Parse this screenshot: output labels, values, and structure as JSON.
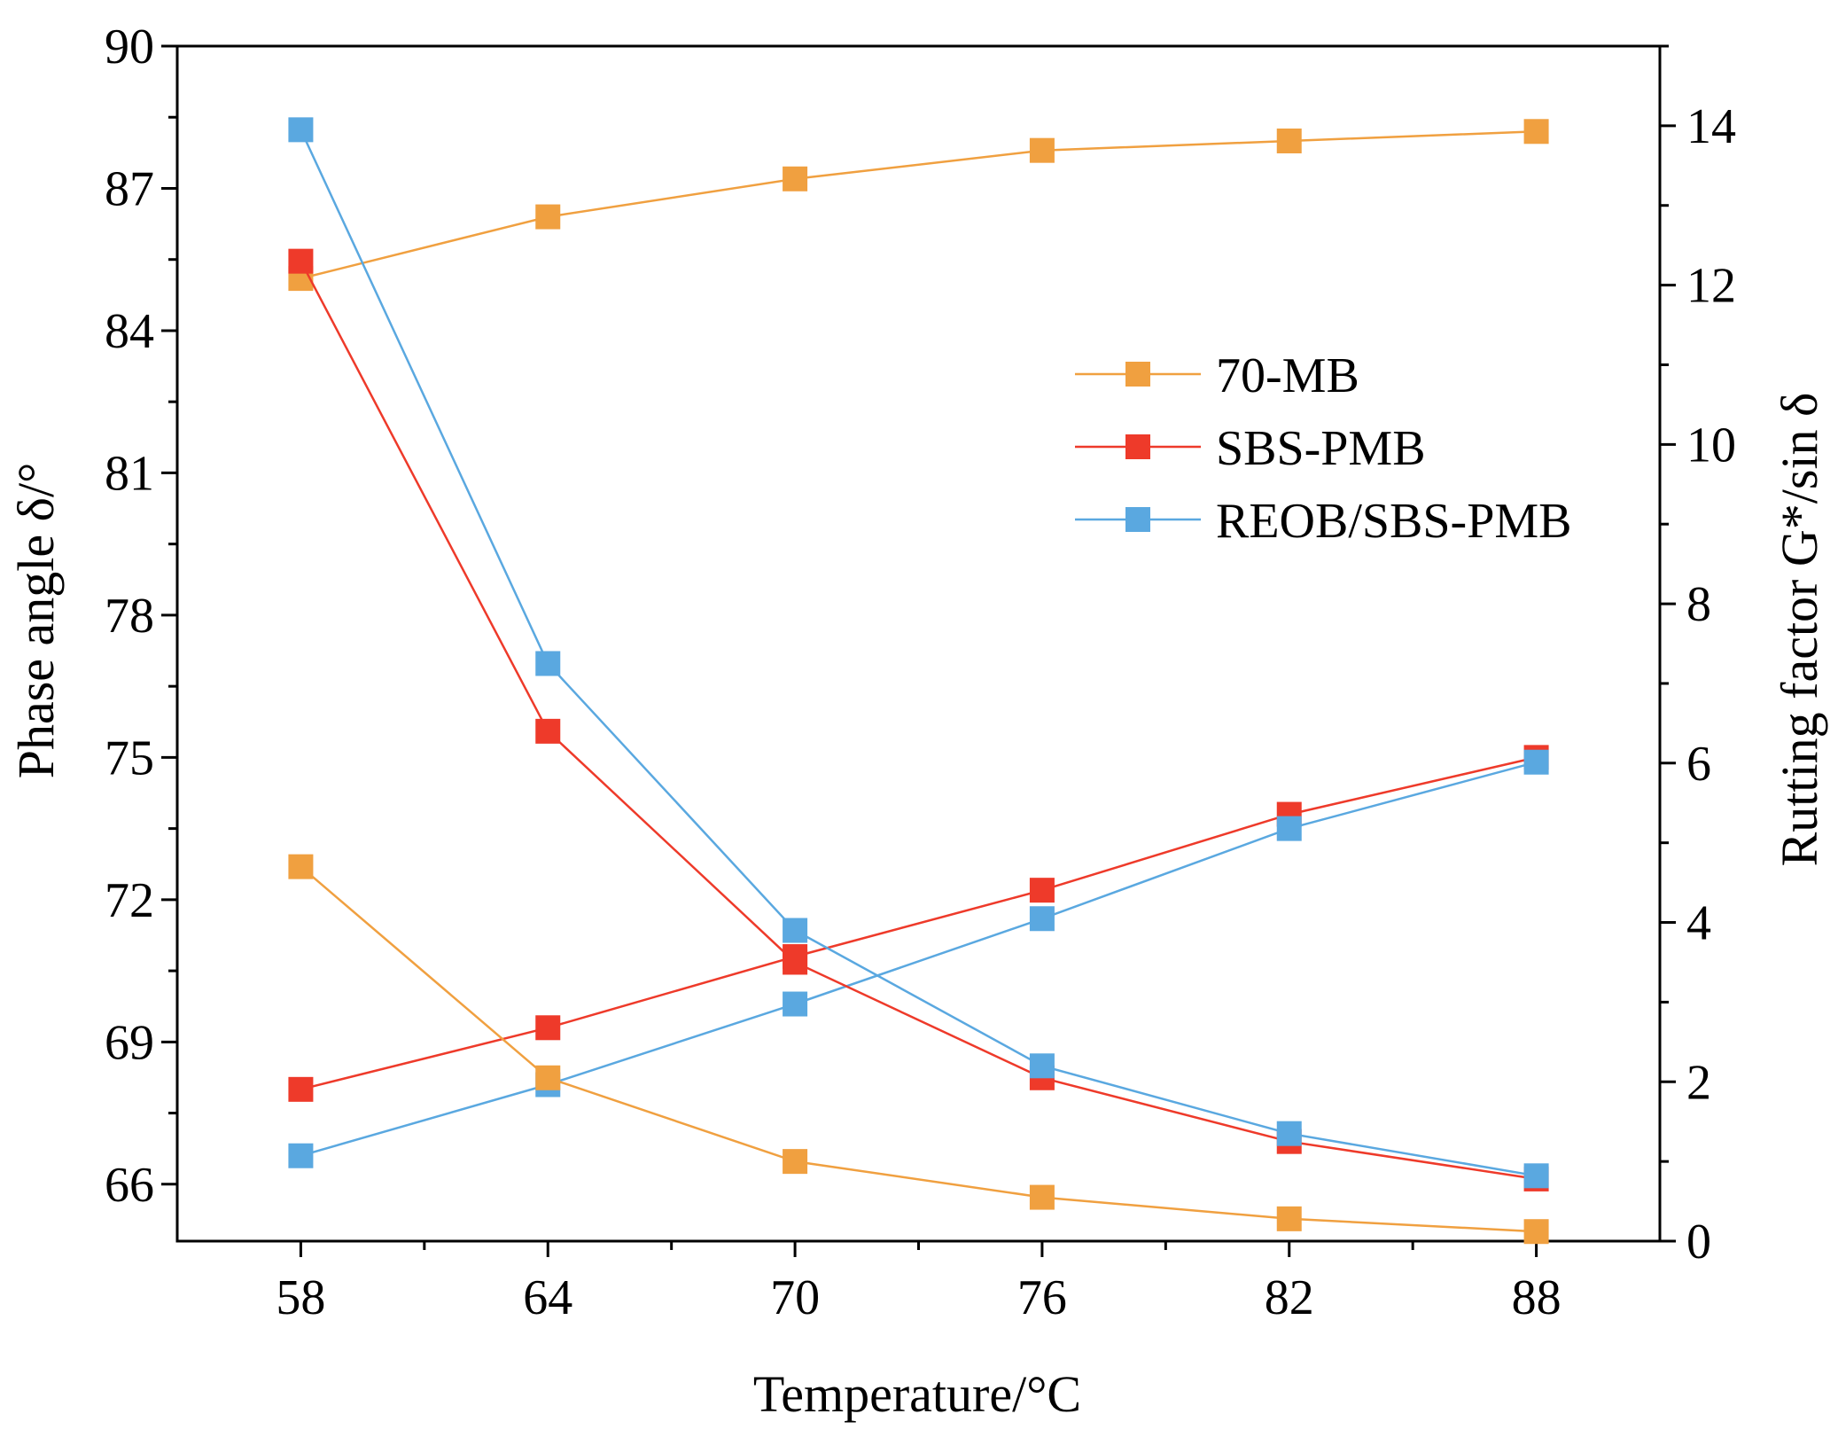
{
  "chart_data": {
    "type": "line",
    "title": "",
    "x": [
      58,
      64,
      70,
      76,
      82,
      88
    ],
    "xlabel": "Temperature/°C",
    "xlim": [
      55,
      91
    ],
    "xticks": [
      58,
      64,
      70,
      76,
      82,
      88
    ],
    "y_left": {
      "label": "Phase angle δ/°",
      "lim": [
        64.8,
        90
      ],
      "ticks": [
        66,
        69,
        72,
        75,
        78,
        81,
        84,
        87,
        90
      ]
    },
    "y_right": {
      "label": "Rutting factor G*/sin δ",
      "lim": [
        0,
        15
      ],
      "ticks": [
        0,
        2,
        4,
        6,
        8,
        10,
        12,
        14
      ]
    },
    "legend_position": "center-right",
    "series": [
      {
        "name": "70-MB",
        "metric": "phase_angle",
        "axis": "left",
        "color": "#F0A040",
        "values": [
          85.1,
          86.4,
          87.2,
          87.8,
          88.0,
          88.2
        ]
      },
      {
        "name": "SBS-PMB",
        "metric": "phase_angle",
        "axis": "left",
        "color": "#EE3A2A",
        "values": [
          68.0,
          69.3,
          70.8,
          72.2,
          73.8,
          75.0
        ]
      },
      {
        "name": "REOB/SBS-PMB",
        "metric": "phase_angle",
        "axis": "left",
        "color": "#5AA8E0",
        "values": [
          66.6,
          68.1,
          69.8,
          71.6,
          73.5,
          74.9
        ]
      },
      {
        "name": "70-MB",
        "metric": "rutting_factor",
        "axis": "right",
        "color": "#F0A040",
        "values": [
          4.7,
          2.05,
          1.0,
          0.55,
          0.28,
          0.12
        ]
      },
      {
        "name": "SBS-PMB",
        "metric": "rutting_factor",
        "axis": "right",
        "color": "#EE3A2A",
        "values": [
          12.3,
          6.4,
          3.5,
          2.05,
          1.25,
          0.78
        ]
      },
      {
        "name": "REOB/SBS-PMB",
        "metric": "rutting_factor",
        "axis": "right",
        "color": "#5AA8E0",
        "values": [
          13.95,
          7.25,
          3.9,
          2.2,
          1.35,
          0.82
        ]
      }
    ],
    "legend": [
      "70-MB",
      "SBS-PMB",
      "REOB/SBS-PMB"
    ],
    "grid": false
  }
}
